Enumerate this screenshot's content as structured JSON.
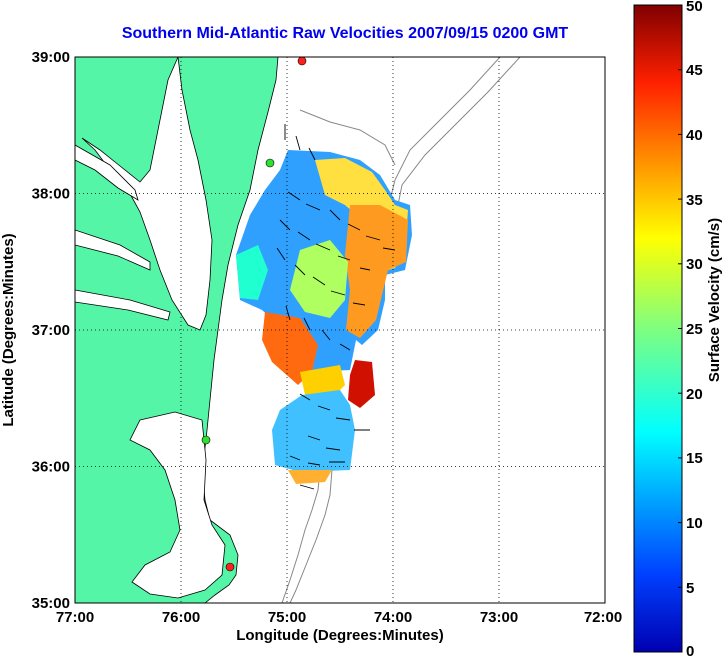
{
  "title": "Southern Mid-Atlantic Raw Velocities 2007/09/15 0200 GMT",
  "map": {
    "x_label": "Longitude (Degrees:Minutes)",
    "y_label": "Latitude (Degrees:Minutes)",
    "x_ticks": [
      "77:00",
      "76:00",
      "75:00",
      "74:00",
      "73:00",
      "72:00"
    ],
    "y_ticks": [
      "39:00",
      "38:00",
      "37:00",
      "36:00",
      "35:00"
    ],
    "land_color": "#55f5a8",
    "ocean_color": "#ffffff",
    "grid": "dotted",
    "stations": [
      {
        "color": "red"
      },
      {
        "color": "green"
      },
      {
        "color": "green"
      },
      {
        "color": "red"
      }
    ]
  },
  "colorbar": {
    "label": "Surface Velocity (cm/s)",
    "ticks": [
      "0",
      "5",
      "10",
      "15",
      "20",
      "25",
      "30",
      "35",
      "40",
      "45",
      "50"
    ],
    "min": 0,
    "max": 50,
    "colormap": "jet"
  }
}
